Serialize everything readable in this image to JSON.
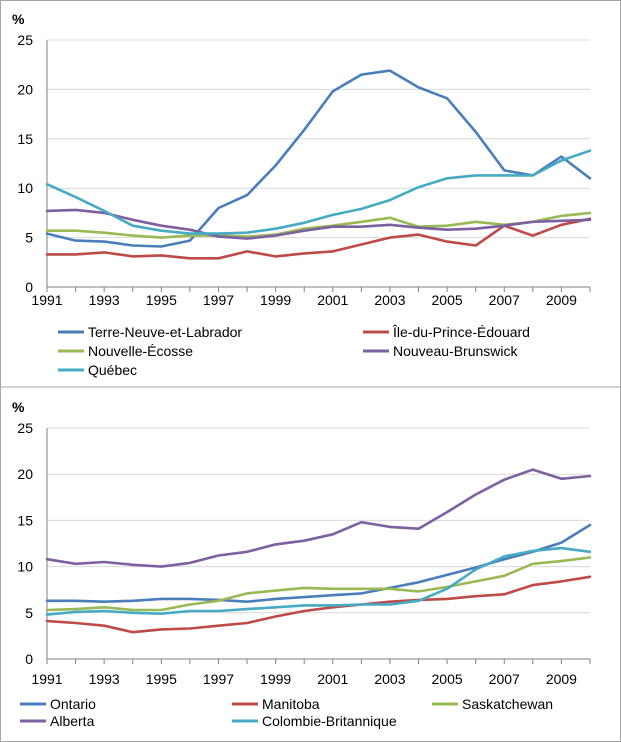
{
  "chart_data": [
    {
      "type": "line",
      "ylabel": "%",
      "ylim": [
        0,
        25
      ],
      "yticks": [
        0,
        5,
        10,
        15,
        20,
        25
      ],
      "xlim": [
        1991,
        2010
      ],
      "xticks": [
        1991,
        1993,
        1995,
        1997,
        1999,
        2001,
        2003,
        2005,
        2007,
        2009
      ],
      "grid": "horizontal",
      "legend_position": "bottom",
      "x": [
        1991,
        1992,
        1993,
        1994,
        1995,
        1996,
        1997,
        1998,
        1999,
        2000,
        2001,
        2002,
        2003,
        2004,
        2005,
        2006,
        2007,
        2008,
        2009,
        2010
      ],
      "series": [
        {
          "name": "Terre-Neuve-et-Labrador",
          "color": "#4a7ebb",
          "values": [
            5.4,
            4.7,
            4.6,
            4.2,
            4.1,
            4.7,
            8.0,
            9.3,
            12.3,
            15.9,
            19.8,
            21.5,
            21.9,
            20.2,
            19.1,
            15.7,
            11.8,
            11.3,
            13.2,
            11.0
          ]
        },
        {
          "name": "Île-du-Prince-Édouard",
          "color": "#be4b48",
          "values": [
            3.3,
            3.3,
            3.5,
            3.1,
            3.2,
            2.9,
            2.9,
            3.6,
            3.1,
            3.4,
            3.6,
            4.3,
            5.0,
            5.3,
            4.6,
            4.2,
            6.2,
            5.2,
            6.3,
            6.9
          ]
        },
        {
          "name": "Nouvelle-Écosse",
          "color": "#98b954",
          "values": [
            5.7,
            5.7,
            5.5,
            5.2,
            5.0,
            5.2,
            5.2,
            5.1,
            5.3,
            5.9,
            6.2,
            6.6,
            7.0,
            6.1,
            6.2,
            6.6,
            6.3,
            6.6,
            7.2,
            7.5
          ]
        },
        {
          "name": "Nouveau-Brunswick",
          "color": "#7d60a0",
          "values": [
            7.7,
            7.8,
            7.5,
            6.8,
            6.2,
            5.8,
            5.1,
            4.9,
            5.2,
            5.7,
            6.1,
            6.1,
            6.3,
            6.0,
            5.8,
            5.9,
            6.2,
            6.6,
            6.7,
            6.8
          ]
        },
        {
          "name": "Québec",
          "color": "#46aac5",
          "values": [
            10.4,
            9.1,
            7.7,
            6.2,
            5.7,
            5.4,
            5.4,
            5.5,
            5.9,
            6.5,
            7.3,
            7.9,
            8.8,
            10.1,
            11.0,
            11.3,
            11.3,
            11.3,
            12.8,
            13.8
          ]
        }
      ]
    },
    {
      "type": "line",
      "ylabel": "%",
      "ylim": [
        0,
        25
      ],
      "yticks": [
        0,
        5,
        10,
        15,
        20,
        25
      ],
      "xlim": [
        1991,
        2010
      ],
      "xticks": [
        1991,
        1993,
        1995,
        1997,
        1999,
        2001,
        2003,
        2005,
        2007,
        2009
      ],
      "grid": "horizontal",
      "legend_position": "bottom",
      "x": [
        1991,
        1992,
        1993,
        1994,
        1995,
        1996,
        1997,
        1998,
        1999,
        2000,
        2001,
        2002,
        2003,
        2004,
        2005,
        2006,
        2007,
        2008,
        2009,
        2010
      ],
      "series": [
        {
          "name": "Ontario",
          "color": "#4a7ebb",
          "values": [
            6.3,
            6.3,
            6.2,
            6.3,
            6.5,
            6.5,
            6.4,
            6.2,
            6.5,
            6.7,
            6.9,
            7.1,
            7.7,
            8.3,
            9.1,
            9.9,
            10.8,
            11.6,
            12.6,
            14.5
          ]
        },
        {
          "name": "Manitoba",
          "color": "#be4b48",
          "values": [
            4.1,
            3.9,
            3.6,
            2.9,
            3.2,
            3.3,
            3.6,
            3.9,
            4.6,
            5.2,
            5.6,
            5.9,
            6.2,
            6.4,
            6.5,
            6.8,
            7.0,
            8.0,
            8.4,
            8.9
          ]
        },
        {
          "name": "Saskatchewan",
          "color": "#98b954",
          "values": [
            5.3,
            5.4,
            5.6,
            5.3,
            5.3,
            5.9,
            6.3,
            7.1,
            7.4,
            7.7,
            7.6,
            7.6,
            7.6,
            7.3,
            7.8,
            8.4,
            9.0,
            10.3,
            10.6,
            11.0
          ]
        },
        {
          "name": "Alberta",
          "color": "#7d60a0",
          "values": [
            10.8,
            10.3,
            10.5,
            10.2,
            10.0,
            10.4,
            11.2,
            11.6,
            12.4,
            12.8,
            13.5,
            14.8,
            14.3,
            14.1,
            15.9,
            17.8,
            19.4,
            20.5,
            19.5,
            19.8
          ]
        },
        {
          "name": "Colombie-Britannique",
          "color": "#46aac5",
          "values": [
            4.8,
            5.1,
            5.2,
            5.0,
            4.9,
            5.2,
            5.2,
            5.4,
            5.6,
            5.8,
            5.8,
            5.9,
            5.9,
            6.3,
            7.6,
            9.7,
            11.1,
            11.7,
            12.0,
            11.6
          ]
        }
      ]
    }
  ]
}
